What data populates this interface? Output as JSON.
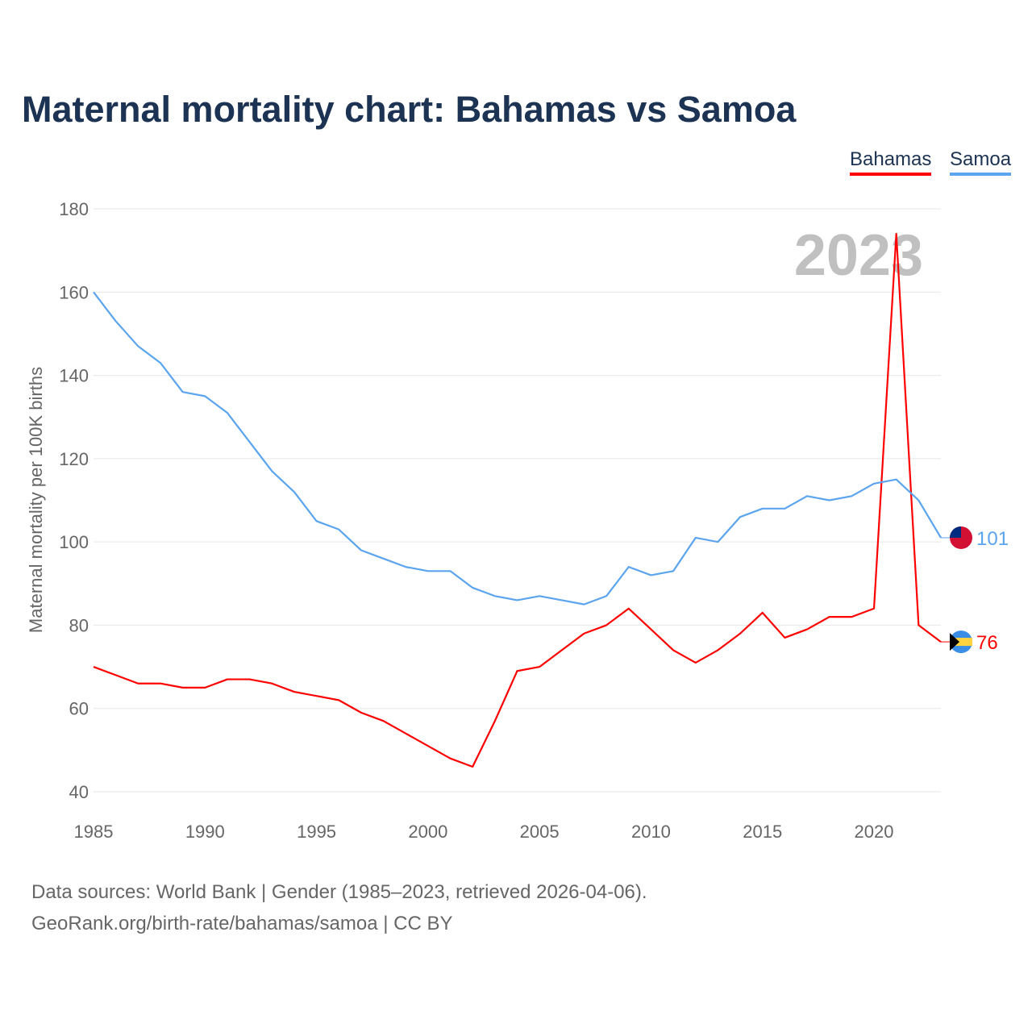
{
  "title": "Maternal mortality chart: Bahamas vs Samoa",
  "footer": {
    "line1": "Data sources: World Bank | Gender (1985–2023, retrieved 2026-04-06).",
    "line2": "GeoRank.org/birth-rate/bahamas/samoa | CC BY"
  },
  "chart_data": {
    "type": "line",
    "title": "Maternal mortality chart: Bahamas vs Samoa",
    "ylabel": "Maternal mortality per 100K births",
    "xlabel": "",
    "year_watermark": "2023",
    "xlim": [
      1985,
      2023
    ],
    "ylim": [
      40,
      180
    ],
    "xticks": [
      "1985",
      "1990",
      "1995",
      "2000",
      "2005",
      "2010",
      "2015",
      "2020"
    ],
    "yticks": [
      "40",
      "60",
      "80",
      "100",
      "120",
      "140",
      "160",
      "180"
    ],
    "legend": "top-right",
    "grid": true,
    "x": [
      1985,
      1986,
      1987,
      1988,
      1989,
      1990,
      1991,
      1992,
      1993,
      1994,
      1995,
      1996,
      1997,
      1998,
      1999,
      2000,
      2001,
      2002,
      2003,
      2004,
      2005,
      2006,
      2007,
      2008,
      2009,
      2010,
      2011,
      2012,
      2013,
      2014,
      2015,
      2016,
      2017,
      2018,
      2019,
      2020,
      2021,
      2022,
      2023
    ],
    "series": [
      {
        "name": "Bahamas",
        "color": "#ff0000",
        "end_label": "76",
        "values": [
          70,
          68,
          66,
          66,
          65,
          65,
          67,
          67,
          66,
          64,
          63,
          62,
          59,
          57,
          54,
          51,
          48,
          46,
          57,
          69,
          70,
          74,
          78,
          80,
          84,
          79,
          74,
          71,
          74,
          78,
          83,
          77,
          79,
          82,
          82,
          84,
          174,
          80,
          76
        ]
      },
      {
        "name": "Samoa",
        "color": "#5ba4ee",
        "end_label": "101",
        "values": [
          160,
          153,
          147,
          143,
          136,
          135,
          131,
          124,
          117,
          112,
          105,
          103,
          98,
          96,
          94,
          93,
          93,
          89,
          87,
          86,
          87,
          86,
          85,
          87,
          94,
          92,
          93,
          101,
          100,
          106,
          108,
          108,
          111,
          110,
          111,
          114,
          115,
          110,
          101
        ]
      }
    ]
  }
}
